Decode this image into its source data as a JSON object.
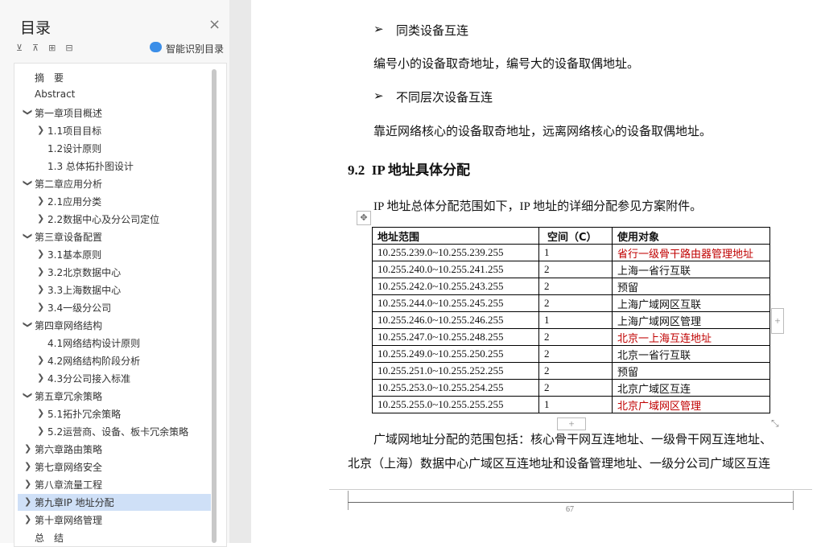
{
  "sidebar": {
    "title": "目录",
    "smart_button": "智能识别目录",
    "toc": [
      {
        "label": "摘　要"
      },
      {
        "label": "Abstract"
      },
      {
        "label": "第一章项目概述",
        "children": [
          {
            "label": "1.1项目目标",
            "expandable": true
          },
          {
            "label": "1.2设计原则"
          },
          {
            "label": "1.3 总体拓扑图设计"
          }
        ]
      },
      {
        "label": "第二章应用分析",
        "children": [
          {
            "label": "2.1应用分类",
            "expandable": true
          },
          {
            "label": "2.2数据中心及分公司定位",
            "expandable": true
          }
        ]
      },
      {
        "label": "第三章设备配置",
        "children": [
          {
            "label": "3.1基本原则",
            "expandable": true
          },
          {
            "label": "3.2北京数据中心",
            "expandable": true
          },
          {
            "label": "3.3上海数据中心",
            "expandable": true
          },
          {
            "label": "3.4一级分公司",
            "expandable": true
          }
        ]
      },
      {
        "label": "第四章网络结构",
        "children": [
          {
            "label": "4.1网络结构设计原则"
          },
          {
            "label": "4.2网络结构阶段分析",
            "expandable": true
          },
          {
            "label": "4.3分公司接入标准",
            "expandable": true
          }
        ]
      },
      {
        "label": "第五章冗余策略",
        "children": [
          {
            "label": "5.1拓扑冗余策略",
            "expandable": true
          },
          {
            "label": "5.2运营商、设备、板卡冗余策略",
            "expandable": true
          }
        ]
      },
      {
        "label": "第六章路由策略",
        "expandable": true
      },
      {
        "label": "第七章网络安全",
        "expandable": true
      },
      {
        "label": "第八章流量工程",
        "expandable": true
      },
      {
        "label": "第九章IP 地址分配",
        "expandable": true,
        "selected": true
      },
      {
        "label": "第十章网络管理",
        "expandable": true
      },
      {
        "label": "总　结"
      }
    ]
  },
  "document": {
    "bullet_1": "同类设备互连",
    "para_1": "编号小的设备取奇地址，编号大的设备取偶地址。",
    "bullet_2": "不同层次设备互连",
    "para_2": "靠近网络核心的设备取奇地址，远离网络核心的设备取偶地址。",
    "heading": "9.2  IP 地址具体分配",
    "para_3": "IP 地址总体分配范围如下，IP 地址的详细分配参见方案附件。",
    "table": {
      "header": [
        "地址范围",
        "空间（C）",
        "使用对象"
      ],
      "highlight_color": "#c00000",
      "rows": [
        {
          "cells": [
            "10.255.239.0~10.255.239.255",
            "1",
            "省行一级骨干路由器管理地址"
          ],
          "highlight": true
        },
        {
          "cells": [
            "10.255.240.0~10.255.241.255",
            "2",
            "上海一省行互联"
          ]
        },
        {
          "cells": [
            "10.255.242.0~10.255.243.255",
            "2",
            "预留"
          ]
        },
        {
          "cells": [
            "10.255.244.0~10.255.245.255",
            "2",
            "上海广域网区互联"
          ]
        },
        {
          "cells": [
            "10.255.246.0~10.255.246.255",
            "1",
            "上海广域网区管理"
          ]
        },
        {
          "cells": [
            "10.255.247.0~10.255.248.255",
            "2",
            "北京一上海互连地址"
          ],
          "highlight": true
        },
        {
          "cells": [
            "10.255.249.0~10.255.250.255",
            "2",
            "北京一省行互联"
          ]
        },
        {
          "cells": [
            "10.255.251.0~10.255.252.255",
            "2",
            "预留"
          ]
        },
        {
          "cells": [
            "10.255.253.0~10.255.254.255",
            "2",
            "北京广域区互连"
          ]
        },
        {
          "cells": [
            "10.255.255.0~10.255.255.255",
            "1",
            "北京广域网区管理"
          ],
          "highlight": true
        }
      ]
    },
    "para_4": [
      "广域网地址分配的范围包括：核心骨干网互连地址、一级骨干网互连地址、",
      "北京（上海）数据中心广域区互连地址和设备管理地址、一级分公司广域区互连"
    ],
    "page_number": "67"
  }
}
